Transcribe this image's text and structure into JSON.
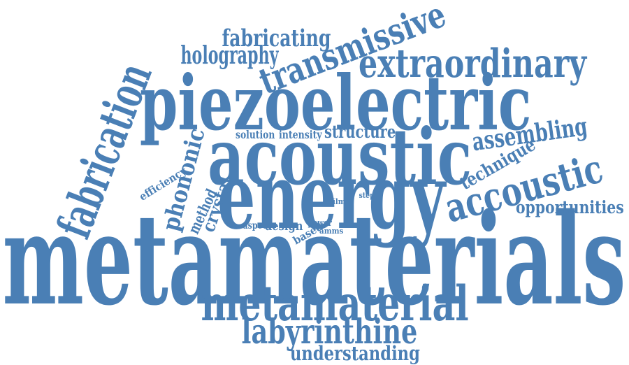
{
  "color": "#4a7fb5",
  "words": [
    {
      "id": "metamaterials",
      "text": "metamaterials"
    },
    {
      "id": "energy",
      "text": "energy"
    },
    {
      "id": "acoustic",
      "text": "acoustic"
    },
    {
      "id": "piezoelectric",
      "text": "piezoelectric"
    },
    {
      "id": "metamaterial",
      "text": "metamaterial"
    },
    {
      "id": "fabrication",
      "text": "fabrication"
    },
    {
      "id": "transmissive",
      "text": "transmissive"
    },
    {
      "id": "extraordinary",
      "text": "extraordinary"
    },
    {
      "id": "accoustic",
      "text": "accoustic"
    },
    {
      "id": "labyrinthine",
      "text": "labyrinthine"
    },
    {
      "id": "holography",
      "text": "holography"
    },
    {
      "id": "fabricating",
      "text": "fabricating"
    },
    {
      "id": "assembling",
      "text": "assembling"
    },
    {
      "id": "phononic",
      "text": "phononic"
    },
    {
      "id": "understanding",
      "text": "understanding"
    },
    {
      "id": "technique",
      "text": "technique"
    },
    {
      "id": "opportunities",
      "text": "opportunities"
    },
    {
      "id": "structure",
      "text": "structure"
    },
    {
      "id": "crystal",
      "text": "crystal"
    },
    {
      "id": "method",
      "text": "method"
    },
    {
      "id": "design",
      "text": "design"
    },
    {
      "id": "efficiency",
      "text": "efficiency"
    },
    {
      "id": "intensity",
      "text": "intensity"
    },
    {
      "id": "solution",
      "text": "solution"
    },
    {
      "id": "based",
      "text": "based"
    },
    {
      "id": "aspect",
      "text": "aspect"
    },
    {
      "id": "power",
      "text": "power"
    },
    {
      "id": "amms",
      "text": "amms"
    },
    {
      "id": "film",
      "text": "film"
    },
    {
      "id": "step",
      "text": "step"
    }
  ]
}
